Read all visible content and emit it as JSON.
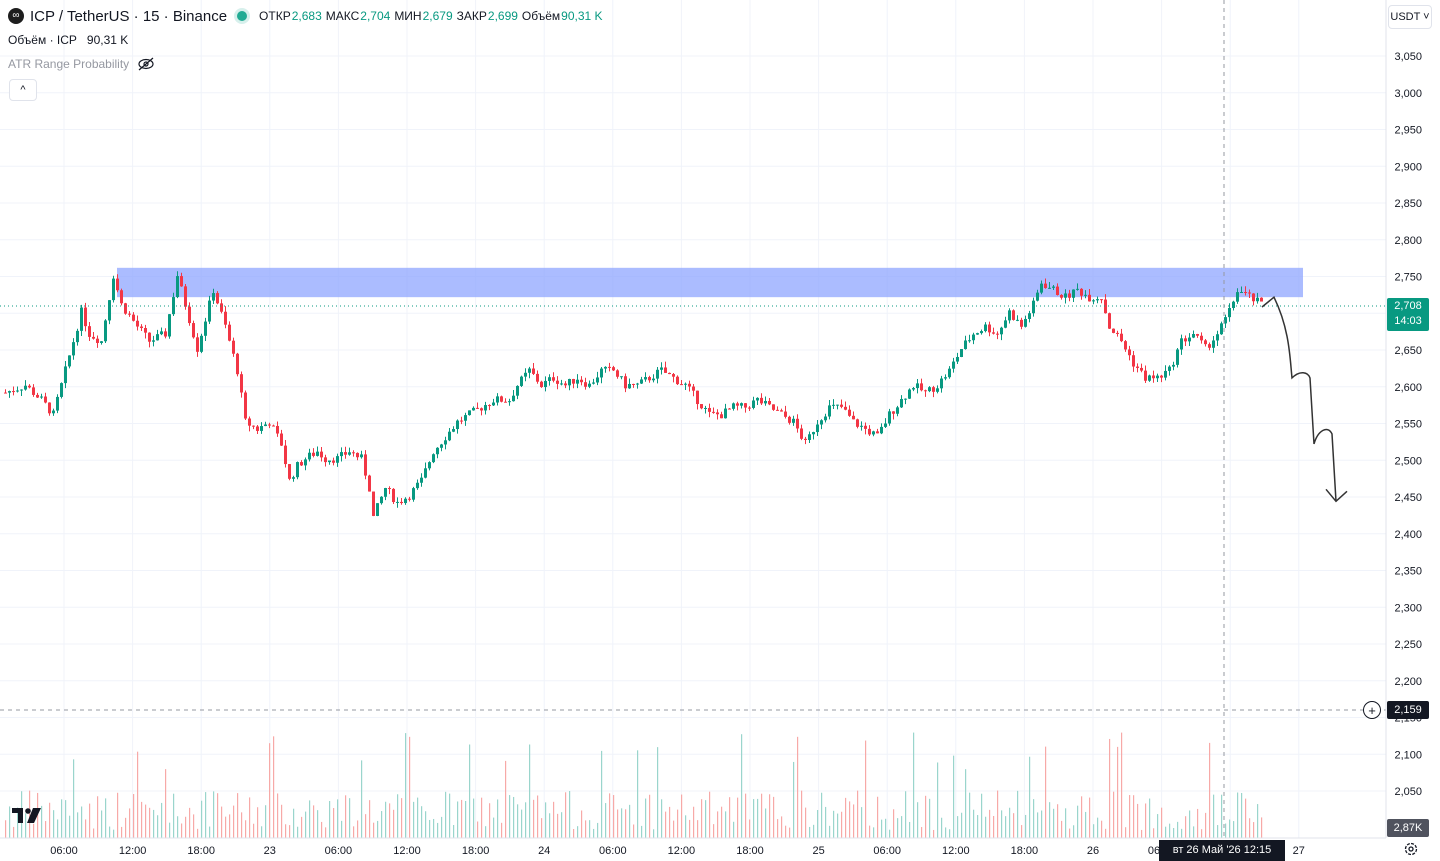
{
  "header": {
    "symbol_icon": "infinity-icon",
    "title": "ICP / TetherUS · 15 · Binance",
    "ohlc": [
      {
        "label": "ОТКР",
        "value": "2,683"
      },
      {
        "label": "МАКС",
        "value": "2,704"
      },
      {
        "label": "МИН",
        "value": "2,679"
      },
      {
        "label": "ЗАКР",
        "value": "2,699"
      },
      {
        "label": "Объём",
        "value": "90,31 K"
      }
    ]
  },
  "volume_legend": {
    "label": "Объём · ICP",
    "value": "90,31 K"
  },
  "indicator": {
    "label": "ATR Range Probability",
    "icon": "eye-off-icon"
  },
  "collapse_label": "^",
  "currency": "USDT ˅",
  "price_axis": [
    "3,050",
    "3,000",
    "2,950",
    "2,900",
    "2,850",
    "2,800",
    "2,750",
    "2,700",
    "2,650",
    "2,600",
    "2,550",
    "2,500",
    "2,450",
    "2,400",
    "2,350",
    "2,300",
    "2,250",
    "2,200",
    "2,150",
    "2,100",
    "2,050"
  ],
  "time_axis": [
    "06:00",
    "12:00",
    "18:00",
    "23",
    "06:00",
    "12:00",
    "18:00",
    "24",
    "06:00",
    "12:00",
    "18:00",
    "25",
    "06:00",
    "12:00",
    "18:00",
    "26",
    "06:00",
    ":00",
    "27"
  ],
  "current_price": {
    "price": "2,708",
    "countdown": "14:03"
  },
  "crosshair_price": "2,159",
  "volume_last": "2,87K",
  "crosshair_time": "вт 26 Май '26   12:15",
  "colors": {
    "up": "#089981",
    "down": "#f23645",
    "zone": "#8fa6ff",
    "grid": "#f0f3fa"
  },
  "chart_data": {
    "type": "candlestick",
    "ylim": [
      2.4,
      3.05
    ],
    "resistance_zone": [
      2.72,
      2.76
    ],
    "close_path": [
      [
        0,
        2.59
      ],
      [
        5,
        2.6
      ],
      [
        9,
        2.58
      ],
      [
        12,
        2.56
      ],
      [
        16,
        2.64
      ],
      [
        19,
        2.7
      ],
      [
        21,
        2.67
      ],
      [
        24,
        2.66
      ],
      [
        27,
        2.75
      ],
      [
        29,
        2.71
      ],
      [
        33,
        2.68
      ],
      [
        36,
        2.66
      ],
      [
        40,
        2.67
      ],
      [
        43,
        2.75
      ],
      [
        46,
        2.69
      ],
      [
        48,
        2.65
      ],
      [
        52,
        2.73
      ],
      [
        55,
        2.68
      ],
      [
        58,
        2.62
      ],
      [
        60,
        2.55
      ],
      [
        63,
        2.54
      ],
      [
        66,
        2.55
      ],
      [
        69,
        2.52
      ],
      [
        71,
        2.47
      ],
      [
        73,
        2.49
      ],
      [
        75,
        2.5
      ],
      [
        78,
        2.51
      ],
      [
        80,
        2.5
      ],
      [
        83,
        2.5
      ],
      [
        86,
        2.51
      ],
      [
        89,
        2.5
      ],
      [
        91,
        2.46
      ],
      [
        92,
        2.42
      ],
      [
        95,
        2.46
      ],
      [
        98,
        2.44
      ],
      [
        101,
        2.45
      ],
      [
        104,
        2.47
      ],
      [
        107,
        2.51
      ],
      [
        110,
        2.53
      ],
      [
        113,
        2.55
      ],
      [
        116,
        2.56
      ],
      [
        119,
        2.57
      ],
      [
        122,
        2.58
      ],
      [
        124,
        2.58
      ],
      [
        126,
        2.58
      ],
      [
        128,
        2.6
      ],
      [
        131,
        2.62
      ],
      [
        134,
        2.6
      ],
      [
        137,
        2.61
      ],
      [
        140,
        2.6
      ],
      [
        143,
        2.61
      ],
      [
        146,
        2.6
      ],
      [
        149,
        2.62
      ],
      [
        152,
        2.62
      ],
      [
        155,
        2.6
      ],
      [
        158,
        2.6
      ],
      [
        161,
        2.61
      ],
      [
        164,
        2.62
      ],
      [
        167,
        2.61
      ],
      [
        170,
        2.6
      ],
      [
        173,
        2.58
      ],
      [
        176,
        2.56
      ],
      [
        179,
        2.56
      ],
      [
        182,
        2.57
      ],
      [
        185,
        2.57
      ],
      [
        188,
        2.58
      ],
      [
        191,
        2.57
      ],
      [
        194,
        2.56
      ],
      [
        197,
        2.55
      ],
      [
        200,
        2.52
      ],
      [
        203,
        2.55
      ],
      [
        206,
        2.57
      ],
      [
        209,
        2.57
      ],
      [
        212,
        2.55
      ],
      [
        215,
        2.54
      ],
      [
        218,
        2.53
      ],
      [
        221,
        2.56
      ],
      [
        224,
        2.58
      ],
      [
        227,
        2.6
      ],
      [
        230,
        2.59
      ],
      [
        233,
        2.6
      ],
      [
        236,
        2.62
      ],
      [
        239,
        2.65
      ],
      [
        242,
        2.67
      ],
      [
        245,
        2.68
      ],
      [
        248,
        2.67
      ],
      [
        251,
        2.7
      ],
      [
        254,
        2.68
      ],
      [
        257,
        2.71
      ],
      [
        259,
        2.74
      ],
      [
        262,
        2.73
      ],
      [
        265,
        2.72
      ],
      [
        268,
        2.73
      ],
      [
        271,
        2.72
      ],
      [
        274,
        2.72
      ],
      [
        276,
        2.68
      ],
      [
        279,
        2.66
      ],
      [
        282,
        2.63
      ],
      [
        285,
        2.61
      ],
      [
        288,
        2.61
      ],
      [
        291,
        2.62
      ],
      [
        294,
        2.66
      ],
      [
        297,
        2.67
      ],
      [
        300,
        2.65
      ],
      [
        303,
        2.67
      ],
      [
        306,
        2.7
      ],
      [
        308,
        2.73
      ],
      [
        311,
        2.72
      ],
      [
        314,
        2.71
      ]
    ],
    "projection": [
      [
        2.72,
        2.61,
        2.52,
        2.45
      ]
    ]
  }
}
